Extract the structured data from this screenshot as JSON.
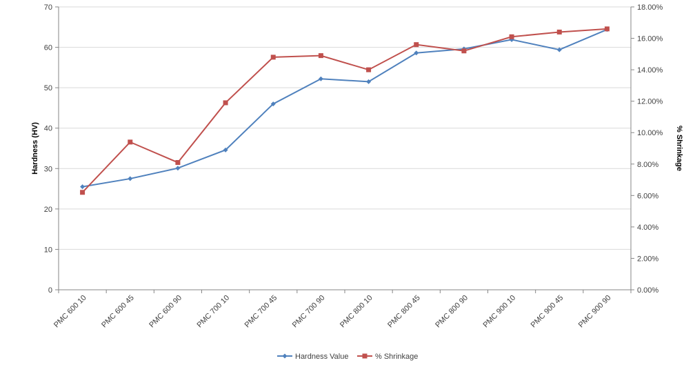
{
  "chart_data": {
    "type": "line",
    "categories": [
      "PMC 600 10",
      "PMC 600 45",
      "PMC 600 90",
      "PMC 700 10",
      "PMC 700 45",
      "PMC 700 90",
      "PMC 800 10",
      "PMC 800 45",
      "PMC 800 90",
      "PMC 900 10",
      "PMC 900 45",
      "PMC 900 90"
    ],
    "series": [
      {
        "name": "Hardness Value",
        "axis": "left",
        "color": "#4F81BD",
        "marker": "diamond",
        "values": [
          25.5,
          27.5,
          30.1,
          34.6,
          46.0,
          52.2,
          51.5,
          58.6,
          59.6,
          61.9,
          59.4,
          64.4
        ]
      },
      {
        "name": "% Shrinkage",
        "axis": "right",
        "color": "#C0504D",
        "marker": "square",
        "values": [
          0.062,
          0.094,
          0.081,
          0.119,
          0.148,
          0.149,
          0.14,
          0.156,
          0.152,
          0.161,
          0.164,
          0.166
        ]
      }
    ],
    "ylabel": "Hardness (HV)",
    "y2label": "% Shrinkage",
    "ylim": [
      0,
      70
    ],
    "y_ticks": [
      "0",
      "10",
      "20",
      "30",
      "40",
      "50",
      "60",
      "70"
    ],
    "y2lim": [
      0,
      0.18
    ],
    "y2_ticks": [
      "0.00%",
      "2.00%",
      "4.00%",
      "6.00%",
      "8.00%",
      "10.00%",
      "12.00%",
      "14.00%",
      "16.00%",
      "18.00%"
    ],
    "grid": true,
    "legend_position": "bottom"
  }
}
